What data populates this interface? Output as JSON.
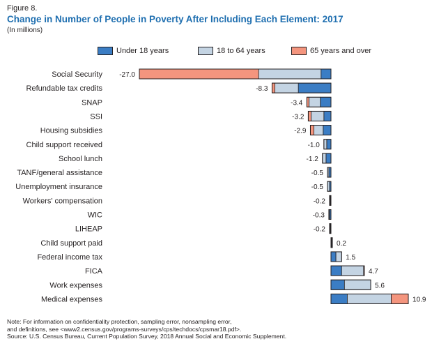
{
  "figure_label": "Figure 8.",
  "title": "Change in Number of People in Poverty After Including Each Element: 2017",
  "subtitle": "(In millions)",
  "colors": {
    "under_18": "#3b7dc4",
    "age_18_64": "#c4d4e3",
    "age_65_over": "#f4957e",
    "title": "#1f6fb0",
    "outline": "#231f20"
  },
  "chart_data": {
    "type": "bar",
    "orientation": "horizontal",
    "stacked": true,
    "title": "Change in Number of People in Poverty After Including Each Element: 2017",
    "subtitle": "(In millions)",
    "legend_position": "top",
    "grid": false,
    "categories": [
      "Social Security",
      "Refundable tax credits",
      "SNAP",
      "SSI",
      "Housing subsidies",
      "Child support received",
      "School lunch",
      "TANF/general assistance",
      "Unemployment insurance",
      "Workers' compensation",
      "WIC",
      "LIHEAP",
      "Child support paid",
      "Federal income tax",
      "FICA",
      "Work expenses",
      "Medical expenses"
    ],
    "totals": [
      -27.0,
      -8.3,
      -3.4,
      -3.2,
      -2.9,
      -1.0,
      -1.2,
      -0.5,
      -0.5,
      -0.2,
      -0.3,
      -0.2,
      0.2,
      1.5,
      4.7,
      5.6,
      10.9
    ],
    "total_labels": [
      "-27.0",
      "-8.3",
      "-3.4",
      "-3.2",
      "-2.9",
      "-1.0",
      "-1.2",
      "-0.5",
      "-0.5",
      "-0.2",
      "-0.3",
      "-0.2",
      "0.2",
      "1.5",
      "4.7",
      "5.6",
      "10.9"
    ],
    "series": [
      {
        "name": "Under 18 years",
        "values": [
          -1.4,
          -4.6,
          -1.5,
          -1.0,
          -1.1,
          -0.6,
          -0.7,
          -0.3,
          -0.2,
          -0.1,
          -0.2,
          -0.1,
          0.1,
          0.7,
          1.5,
          1.9,
          2.3
        ]
      },
      {
        "name": "18 to 64 years",
        "values": [
          -8.8,
          -3.3,
          -1.6,
          -1.8,
          -1.3,
          -0.4,
          -0.5,
          -0.2,
          -0.3,
          -0.1,
          -0.1,
          -0.1,
          0.1,
          0.8,
          3.1,
          3.7,
          6.2
        ]
      },
      {
        "name": "65 years and over",
        "values": [
          -16.8,
          -0.4,
          -0.3,
          -0.4,
          -0.5,
          0,
          0,
          0,
          0,
          0,
          0,
          0,
          0,
          0,
          0.1,
          0,
          2.4
        ]
      }
    ],
    "xlim": [
      -27.0,
      10.9
    ]
  },
  "legend": [
    {
      "label": "Under 18 years"
    },
    {
      "label": "18 to 64 years"
    },
    {
      "label": "65 years and over"
    }
  ],
  "notes": [
    "Note: For information on confidentiality protection, sampling error, nonsampling error,",
    "and definitions, see <www2.census.gov/programs-surveys/cps/techdocs/cpsmar18.pdf>.",
    "Source: U.S. Census Bureau, Current Population Survey, 2018 Annual Social and Economic Supplement."
  ]
}
